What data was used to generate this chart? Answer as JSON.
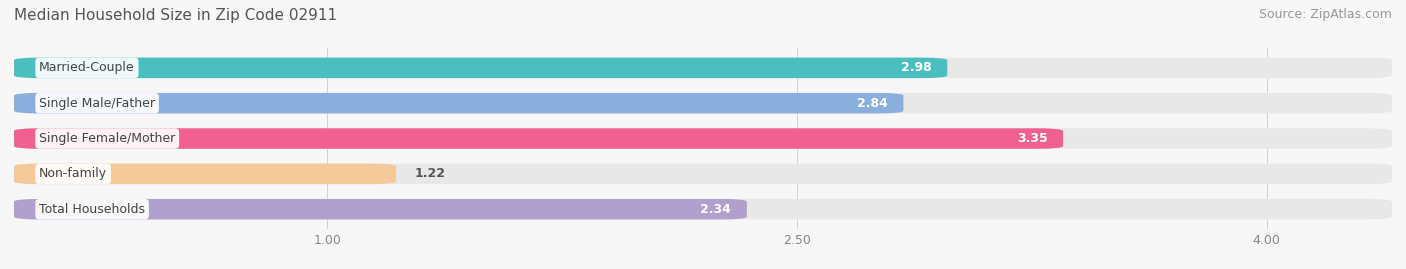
{
  "title": "Median Household Size in Zip Code 02911",
  "source": "Source: ZipAtlas.com",
  "categories": [
    "Married-Couple",
    "Single Male/Father",
    "Single Female/Mother",
    "Non-family",
    "Total Households"
  ],
  "values": [
    2.98,
    2.84,
    3.35,
    1.22,
    2.34
  ],
  "bar_colors": [
    "#4BBFBF",
    "#8AAEDD",
    "#F06090",
    "#F5C899",
    "#B0A0CC"
  ],
  "background_color": "#f7f7f7",
  "bar_bg_color": "#e8e8e8",
  "xlim": [
    0,
    4.4
  ],
  "xticks": [
    1.0,
    2.5,
    4.0
  ],
  "value_label_white_threshold": 1.5,
  "title_fontsize": 11,
  "source_fontsize": 9,
  "label_fontsize": 9,
  "tick_fontsize": 9,
  "bar_height": 0.58,
  "bar_gap": 0.42
}
